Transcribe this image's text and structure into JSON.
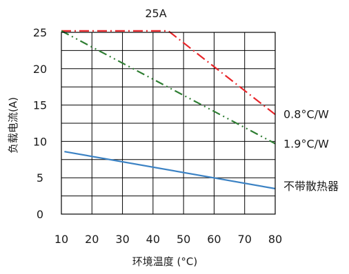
{
  "chart_data": {
    "type": "line",
    "title": "25A",
    "xlabel": "环境温度 (°C)",
    "ylabel": "负载电流(A)",
    "xlim": [
      10,
      80
    ],
    "ylim": [
      0,
      25
    ],
    "x_ticks": [
      10,
      20,
      30,
      40,
      50,
      60,
      70,
      80
    ],
    "y_ticks": [
      0,
      5,
      10,
      15,
      20,
      25
    ],
    "grid": true,
    "legend": "inline-right",
    "series": [
      {
        "name": "0.8°C/W",
        "color": "#e8262a",
        "dash": "dash-dot",
        "points": [
          [
            10,
            25.2
          ],
          [
            45,
            25.2
          ],
          [
            80,
            13.7
          ]
        ]
      },
      {
        "name": "1.9°C/W",
        "color": "#2e7d32",
        "dash": "dash-dot-dot",
        "points": [
          [
            10,
            25.2
          ],
          [
            80,
            9.7
          ]
        ]
      },
      {
        "name": "不带散热器",
        "color": "#3b82c4",
        "dash": "solid",
        "points": [
          [
            11,
            8.6
          ],
          [
            80,
            3.5
          ]
        ]
      }
    ]
  }
}
